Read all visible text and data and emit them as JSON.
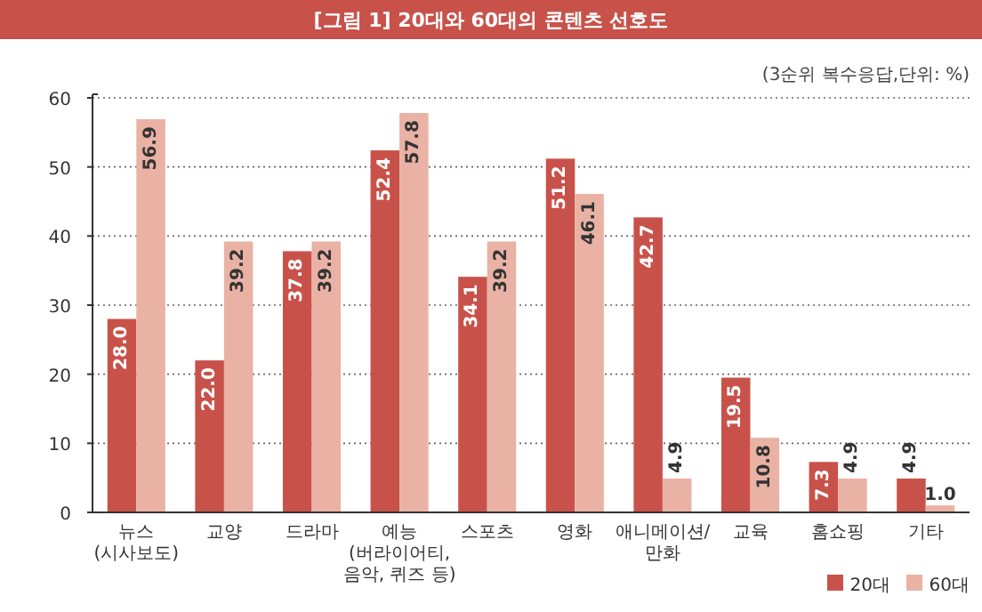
{
  "chart_data": {
    "type": "bar",
    "title": "[그림 1] 20대와 60대의 콘텐츠 선호도",
    "annotations": [
      "(3순위 복수응답,단위: %)"
    ],
    "categories": [
      "뉴스\n(시사보도)",
      "교양",
      "드라마",
      "예능\n(버라이어티,\n음악, 퀴즈 등)",
      "스포츠",
      "영화",
      "애니메이션/\n만화",
      "교육",
      "홈쇼핑",
      "기타"
    ],
    "series": [
      {
        "name": "20대",
        "color": "#c8524a",
        "values": [
          28.0,
          22.0,
          37.8,
          52.4,
          34.1,
          51.2,
          42.7,
          19.5,
          7.3,
          4.9
        ],
        "value_labels": [
          "28.0",
          "22.0",
          "37.8",
          "52.4",
          "34.1",
          "51.2",
          "42.7",
          "19.5",
          "7.3",
          "4.9"
        ]
      },
      {
        "name": "60대",
        "color": "#e9b2a4",
        "values": [
          56.9,
          39.2,
          39.2,
          57.8,
          39.2,
          46.1,
          4.9,
          10.8,
          4.9,
          1.0
        ],
        "value_labels": [
          "56.9",
          "39.2",
          "39.2",
          "57.8",
          "39.2",
          "46.1",
          "4.9",
          "10.8",
          "4.9",
          "1.0"
        ]
      }
    ],
    "ylim": [
      0,
      60
    ],
    "yticks": [
      0,
      10,
      20,
      30,
      40,
      50,
      60
    ],
    "grid": "y",
    "legend": "bottom right"
  }
}
